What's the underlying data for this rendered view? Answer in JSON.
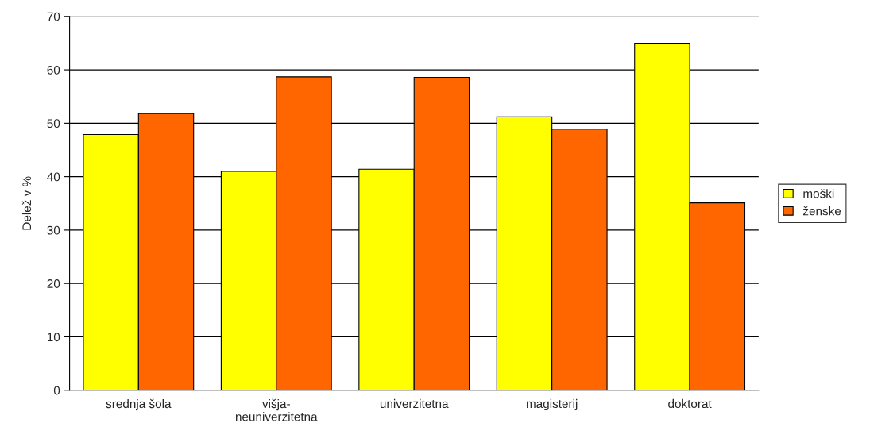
{
  "chart_data": {
    "type": "bar",
    "ylabel": "Delež v %",
    "categories": [
      "srednja šola",
      "višja-\nneuniverzitetna",
      "univerzitetna",
      "magisterij",
      "doktorat"
    ],
    "series": [
      {
        "name": "moški",
        "color": "#ffff00",
        "values": [
          47.9,
          41.0,
          41.4,
          51.2,
          65.0
        ]
      },
      {
        "name": "ženske",
        "color": "#ff6600",
        "values": [
          51.8,
          58.7,
          58.6,
          48.9,
          35.1
        ]
      }
    ],
    "ylim": [
      0,
      70
    ],
    "yticks": [
      0,
      10,
      20,
      30,
      40,
      50,
      60,
      70
    ],
    "grid": "y",
    "legend": "right"
  }
}
